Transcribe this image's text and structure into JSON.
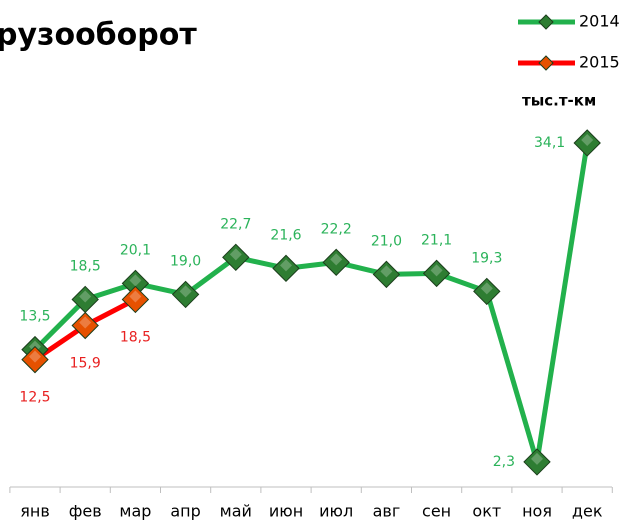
{
  "chart_data": {
    "type": "line",
    "title": "рузооборот",
    "unit_label": "тыс.т-км",
    "categories": [
      "янв",
      "фев",
      "мар",
      "апр",
      "май",
      "июн",
      "июл",
      "авг",
      "сен",
      "окт",
      "ноя",
      "дек"
    ],
    "series": [
      {
        "name": "2014",
        "color": "#22b14c",
        "marker_color": "#2e7d32",
        "label_color": "#2bb35a",
        "values": [
          13.5,
          18.5,
          20.1,
          19.0,
          22.7,
          21.6,
          22.2,
          21.0,
          21.1,
          19.3,
          2.3,
          34.1
        ],
        "value_labels": [
          "13,5",
          "18,5",
          "20,1",
          "19,0",
          "22,7",
          "21,6",
          "22,2",
          "21,0",
          "21,1",
          "19,3",
          "2,3",
          "34,1"
        ]
      },
      {
        "name": "2015",
        "color": "#ff0000",
        "marker_color": "#e65100",
        "label_color": "#e82020",
        "values": [
          12.5,
          15.9,
          18.5,
          null,
          null,
          null,
          null,
          null,
          null,
          null,
          null,
          null
        ],
        "value_labels": [
          "12,5",
          "15,9",
          "18,5",
          null,
          null,
          null,
          null,
          null,
          null,
          null,
          null,
          null
        ]
      }
    ]
  }
}
